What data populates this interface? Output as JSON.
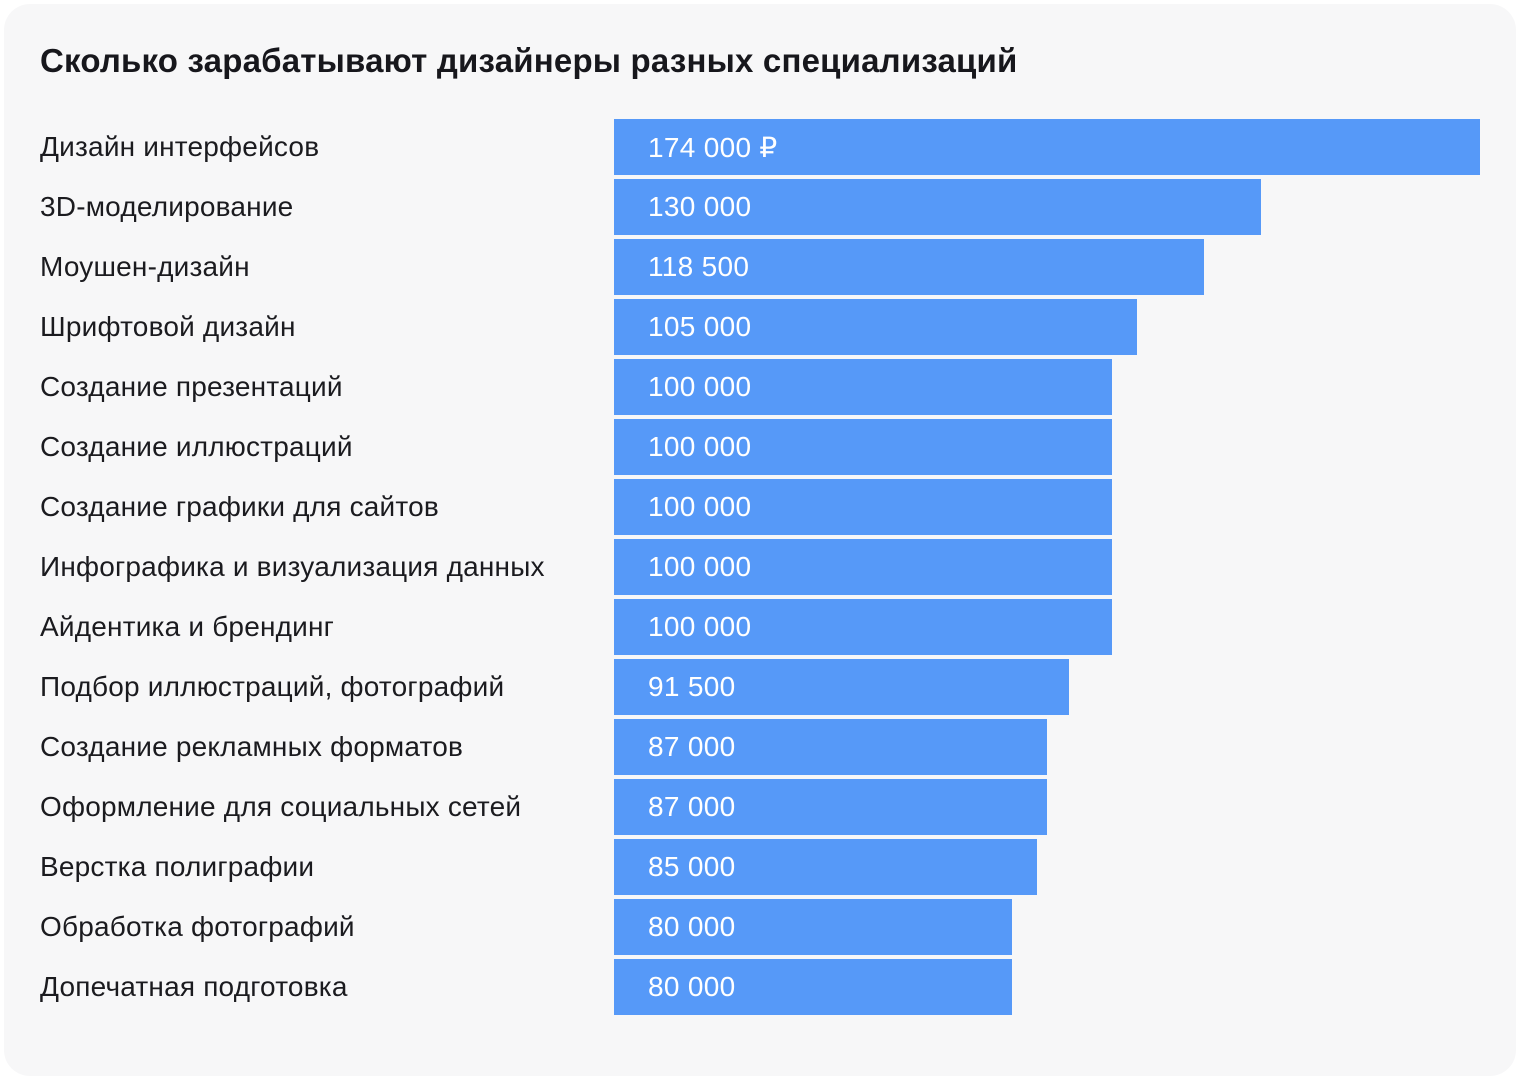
{
  "colors": {
    "page_bg": "#ffffff",
    "card_bg": "#f7f7f8",
    "bar": "#5699f8",
    "title_text": "#17171c",
    "label_text": "#1b1b1f",
    "value_text": "#ffffff"
  },
  "chart_data": {
    "type": "bar",
    "orientation": "horizontal",
    "title": "Сколько зарабатывают дизайнеры разных специализаций",
    "unit": "₽",
    "max_value": 174000,
    "xlim": [
      0,
      174000
    ],
    "grid": false,
    "legend": false,
    "categories": [
      "Дизайн интерфейсов",
      "3D-моделирование",
      "Моушен-дизайн",
      "Шрифтовой дизайн",
      "Создание презентаций",
      "Создание иллюстраций",
      "Создание графики для сайтов",
      "Инфографика и визуализация данных",
      "Айдентика и брендинг",
      "Подбор иллюстраций, фотографий",
      "Создание рекламных форматов",
      "Оформление для социальных сетей",
      "Верстка полиграфии",
      "Обработка фотографий",
      "Допечатная подготовка"
    ],
    "values": [
      174000,
      130000,
      118500,
      105000,
      100000,
      100000,
      100000,
      100000,
      100000,
      91500,
      87000,
      87000,
      85000,
      80000,
      80000
    ],
    "value_labels": [
      "174 000 ₽",
      "130 000",
      "118 500",
      "105 000",
      "100 000",
      "100 000",
      "100 000",
      "100 000",
      "100 000",
      "91 500",
      "87 000",
      "87 000",
      "85 000",
      "80 000",
      "80 000"
    ]
  }
}
